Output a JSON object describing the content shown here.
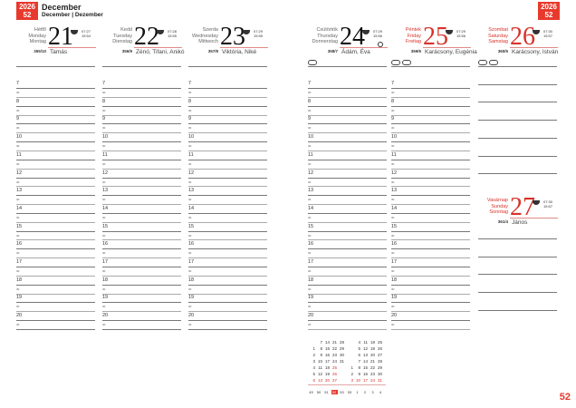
{
  "header": {
    "year": "2026",
    "week": "52",
    "month": "December",
    "month_sub": "December | Dezember"
  },
  "page_number": "52",
  "hours": [
    "7",
    "8",
    "9",
    "10",
    "11",
    "12",
    "13",
    "14",
    "15",
    "16",
    "17",
    "18",
    "19",
    "20"
  ],
  "half_label": "30",
  "days": [
    {
      "names": [
        "Hétfő",
        "Monday",
        "Montag"
      ],
      "num": "21",
      "sunrise": "07:27",
      "sunset": "15:54",
      "doy": "355/10",
      "namedays": "Tamás",
      "red": false
    },
    {
      "names": [
        "Kedd",
        "Tuesday",
        "Dienstag"
      ],
      "num": "22",
      "sunrise": "07:28",
      "sunset": "15:55",
      "doy": "356/9",
      "namedays": "Zénó, Tifani, Anikó",
      "red": false
    },
    {
      "names": [
        "Szerda",
        "Wednesday",
        "Mittwoch"
      ],
      "num": "23",
      "sunrise": "07:29",
      "sunset": "15:55",
      "doy": "357/8",
      "namedays": "Viktória, Niké",
      "red": false
    },
    {
      "names": [
        "Csütörtök",
        "Thursday",
        "Donnerstag"
      ],
      "num": "24",
      "sunrise": "07:29",
      "sunset": "15:56",
      "doy": "358/7",
      "namedays": "Ádám, Éva",
      "red": false
    },
    {
      "names": [
        "Péntek",
        "Friday",
        "Freitag"
      ],
      "num": "25",
      "sunrise": "07:29",
      "sunset": "15:56",
      "doy": "359/6",
      "namedays": "Karácsony, Eugénia",
      "red": true
    },
    {
      "names": [
        "Szombat",
        "Saturday",
        "Samstag"
      ],
      "num": "26",
      "sunrise": "07:30",
      "sunset": "15:57",
      "doy": "360/5",
      "namedays": "Karácsony, István",
      "red": true
    },
    {
      "names": [
        "Vasárnap",
        "Sunday",
        "Sonntag"
      ],
      "num": "27",
      "sunrise": "07:30",
      "sunset": "15:57",
      "doy": "361/4",
      "namedays": "János",
      "red": true
    }
  ],
  "mini_calendar": {
    "december": [
      [
        "",
        "7",
        "14",
        "21",
        "28"
      ],
      [
        "1",
        "8",
        "15",
        "22",
        "29"
      ],
      [
        "2",
        "9",
        "16",
        "23",
        "30"
      ],
      [
        "3",
        "10",
        "17",
        "24",
        "31"
      ],
      [
        "4",
        "11",
        "18",
        "25",
        ""
      ],
      [
        "5",
        "12",
        "19",
        "26",
        ""
      ],
      [
        "6",
        "13",
        "20",
        "27",
        ""
      ]
    ],
    "january": [
      [
        "",
        "4",
        "11",
        "18",
        "25"
      ],
      [
        "",
        "5",
        "12",
        "19",
        "26"
      ],
      [
        "",
        "6",
        "13",
        "20",
        "27"
      ],
      [
        "",
        "7",
        "14",
        "21",
        "28"
      ],
      [
        "1",
        "8",
        "15",
        "22",
        "29"
      ],
      [
        "2",
        "9",
        "16",
        "23",
        "30"
      ],
      [
        "3",
        "10",
        "17",
        "24",
        "31"
      ]
    ],
    "weeks": [
      "49",
      "50",
      "51",
      "52",
      "53",
      "53",
      "1",
      "2",
      "3",
      "4"
    ],
    "active_week": "52",
    "red_color": "#d8322a"
  }
}
